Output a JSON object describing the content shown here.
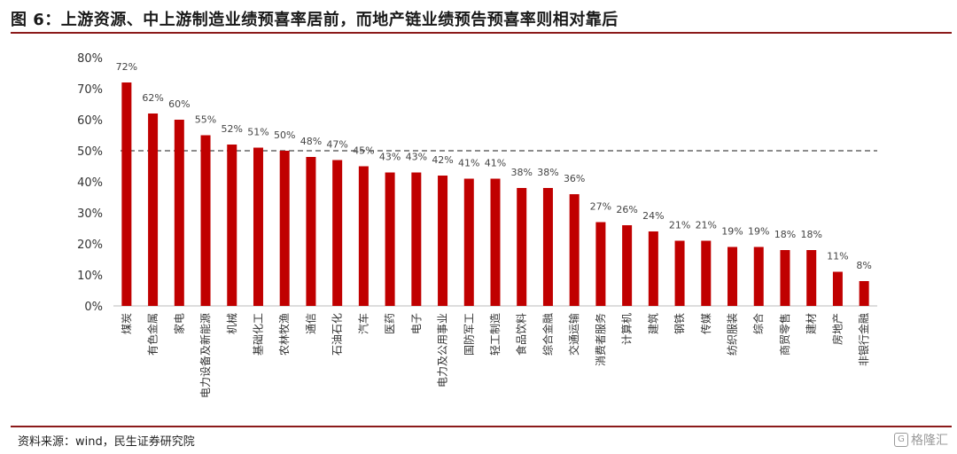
{
  "header": {
    "title": "图 6：上游资源、中上游制造业绩预喜率居前，而地产链业绩预告预喜率则相对靠后"
  },
  "footer": {
    "source": "资料来源：wind，民生证券研究院",
    "watermark": "格隆汇"
  },
  "colors": {
    "bar": "#c00000",
    "rule": "#8b1a1a",
    "refline": "#666666"
  },
  "chart_data": {
    "type": "bar",
    "categories": [
      "煤炭",
      "有色金属",
      "家电",
      "电力设备及新能源",
      "机械",
      "基础化工",
      "农林牧渔",
      "通信",
      "石油石化",
      "汽车",
      "医药",
      "电子",
      "电力及公用事业",
      "国防军工",
      "轻工制造",
      "食品饮料",
      "综合金融",
      "交通运输",
      "消费者服务",
      "计算机",
      "建筑",
      "钢铁",
      "传媒",
      "纺织服装",
      "综合",
      "商贸零售",
      "建材",
      "房地产",
      "非银行金融"
    ],
    "values": [
      72,
      62,
      60,
      55,
      52,
      51,
      50,
      48,
      47,
      45,
      43,
      43,
      42,
      41,
      41,
      38,
      38,
      36,
      27,
      26,
      24,
      21,
      21,
      19,
      19,
      18,
      18,
      11,
      8
    ],
    "data_labels": [
      "72%",
      "62%",
      "60%",
      "55%",
      "52%",
      "51%",
      "50%",
      "48%",
      "47%",
      "45%",
      "43%",
      "43%",
      "42%",
      "41%",
      "41%",
      "38%",
      "38%",
      "36%",
      "27%",
      "26%",
      "24%",
      "21%",
      "21%",
      "19%",
      "19%",
      "18%",
      "18%",
      "11%",
      "8%"
    ],
    "yticks": [
      "0%",
      "10%",
      "20%",
      "30%",
      "40%",
      "50%",
      "60%",
      "70%",
      "80%"
    ],
    "ylim": [
      0,
      80
    ],
    "reference_line": 50,
    "grid": false,
    "legend": "none"
  }
}
